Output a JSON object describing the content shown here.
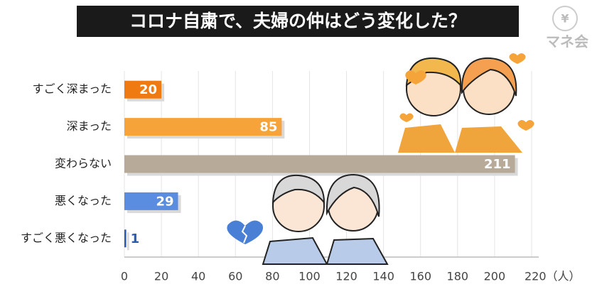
{
  "logo": {
    "symbol": "¥",
    "name": "マネ会"
  },
  "chart_data": {
    "type": "hbar",
    "title": "コロナ自粛で、夫婦の仲はどう変化した？",
    "categories": [
      "すごく深まった",
      "深まった",
      "変わらない",
      "悪くなった",
      "すごく悪くなった"
    ],
    "values": [
      20,
      85,
      211,
      29,
      1
    ],
    "colors": [
      "#f07a12",
      "#f6a43a",
      "#b7aa98",
      "#5a8de0",
      "#2f5bb0"
    ],
    "xlim": [
      0,
      220
    ],
    "xticks": [
      0,
      20,
      40,
      60,
      80,
      100,
      120,
      140,
      160,
      180,
      200,
      {
        "value": 220,
        "label": "220（人）"
      }
    ],
    "grid": true
  }
}
